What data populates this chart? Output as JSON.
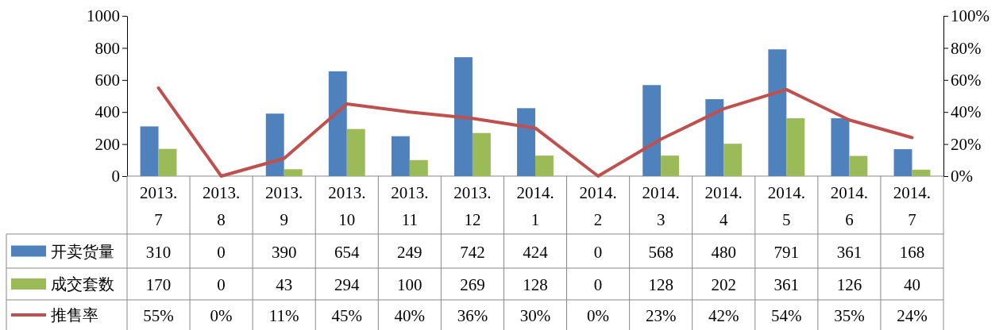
{
  "chart_data": {
    "type": "bar",
    "categories": [
      "2013.7",
      "2013.8",
      "2013.9",
      "2013.10",
      "2013.11",
      "2013.12",
      "2014.1",
      "2014.2",
      "2014.3",
      "2014.4",
      "2014.5",
      "2014.6",
      "2014.7"
    ],
    "series": [
      {
        "name": "开卖货量",
        "color": "#4f81bd",
        "values": [
          310,
          0,
          390,
          654,
          249,
          742,
          424,
          0,
          568,
          480,
          791,
          361,
          168
        ],
        "value_labels": [
          "310",
          "0",
          "390",
          "654",
          "249",
          "742",
          "424",
          "0",
          "568",
          "480",
          "791",
          "361",
          "168"
        ]
      },
      {
        "name": "成交套数",
        "color": "#9bbb59",
        "values": [
          170,
          0,
          43,
          294,
          100,
          269,
          128,
          0,
          128,
          202,
          361,
          126,
          40
        ],
        "value_labels": [
          "170",
          "0",
          "43",
          "294",
          "100",
          "269",
          "128",
          "0",
          "128",
          "202",
          "361",
          "126",
          "40"
        ]
      },
      {
        "name": "推售率",
        "type": "line",
        "axis": "y2",
        "color": "#c0504d",
        "values": [
          55,
          0,
          11,
          45,
          40,
          36,
          30,
          0,
          23,
          42,
          54,
          35,
          24
        ],
        "value_labels": [
          "55%",
          "0%",
          "11%",
          "45%",
          "40%",
          "36%",
          "30%",
          "0%",
          "23%",
          "42%",
          "54%",
          "35%",
          "24%"
        ]
      }
    ],
    "ylim": [
      0,
      1000
    ],
    "yticks": [
      0,
      200,
      400,
      600,
      800,
      1000
    ],
    "y2lim": [
      0,
      100
    ],
    "y2ticks": [
      {
        "value": 0,
        "label": "0%"
      },
      {
        "value": 20,
        "label": "20%"
      },
      {
        "value": 40,
        "label": "40%"
      },
      {
        "value": 60,
        "label": "60%"
      },
      {
        "value": 80,
        "label": "80%"
      },
      {
        "value": 100,
        "label": "100%"
      }
    ],
    "grid": false,
    "legend": "bottom left",
    "marker": "none",
    "line_style": "solid"
  }
}
